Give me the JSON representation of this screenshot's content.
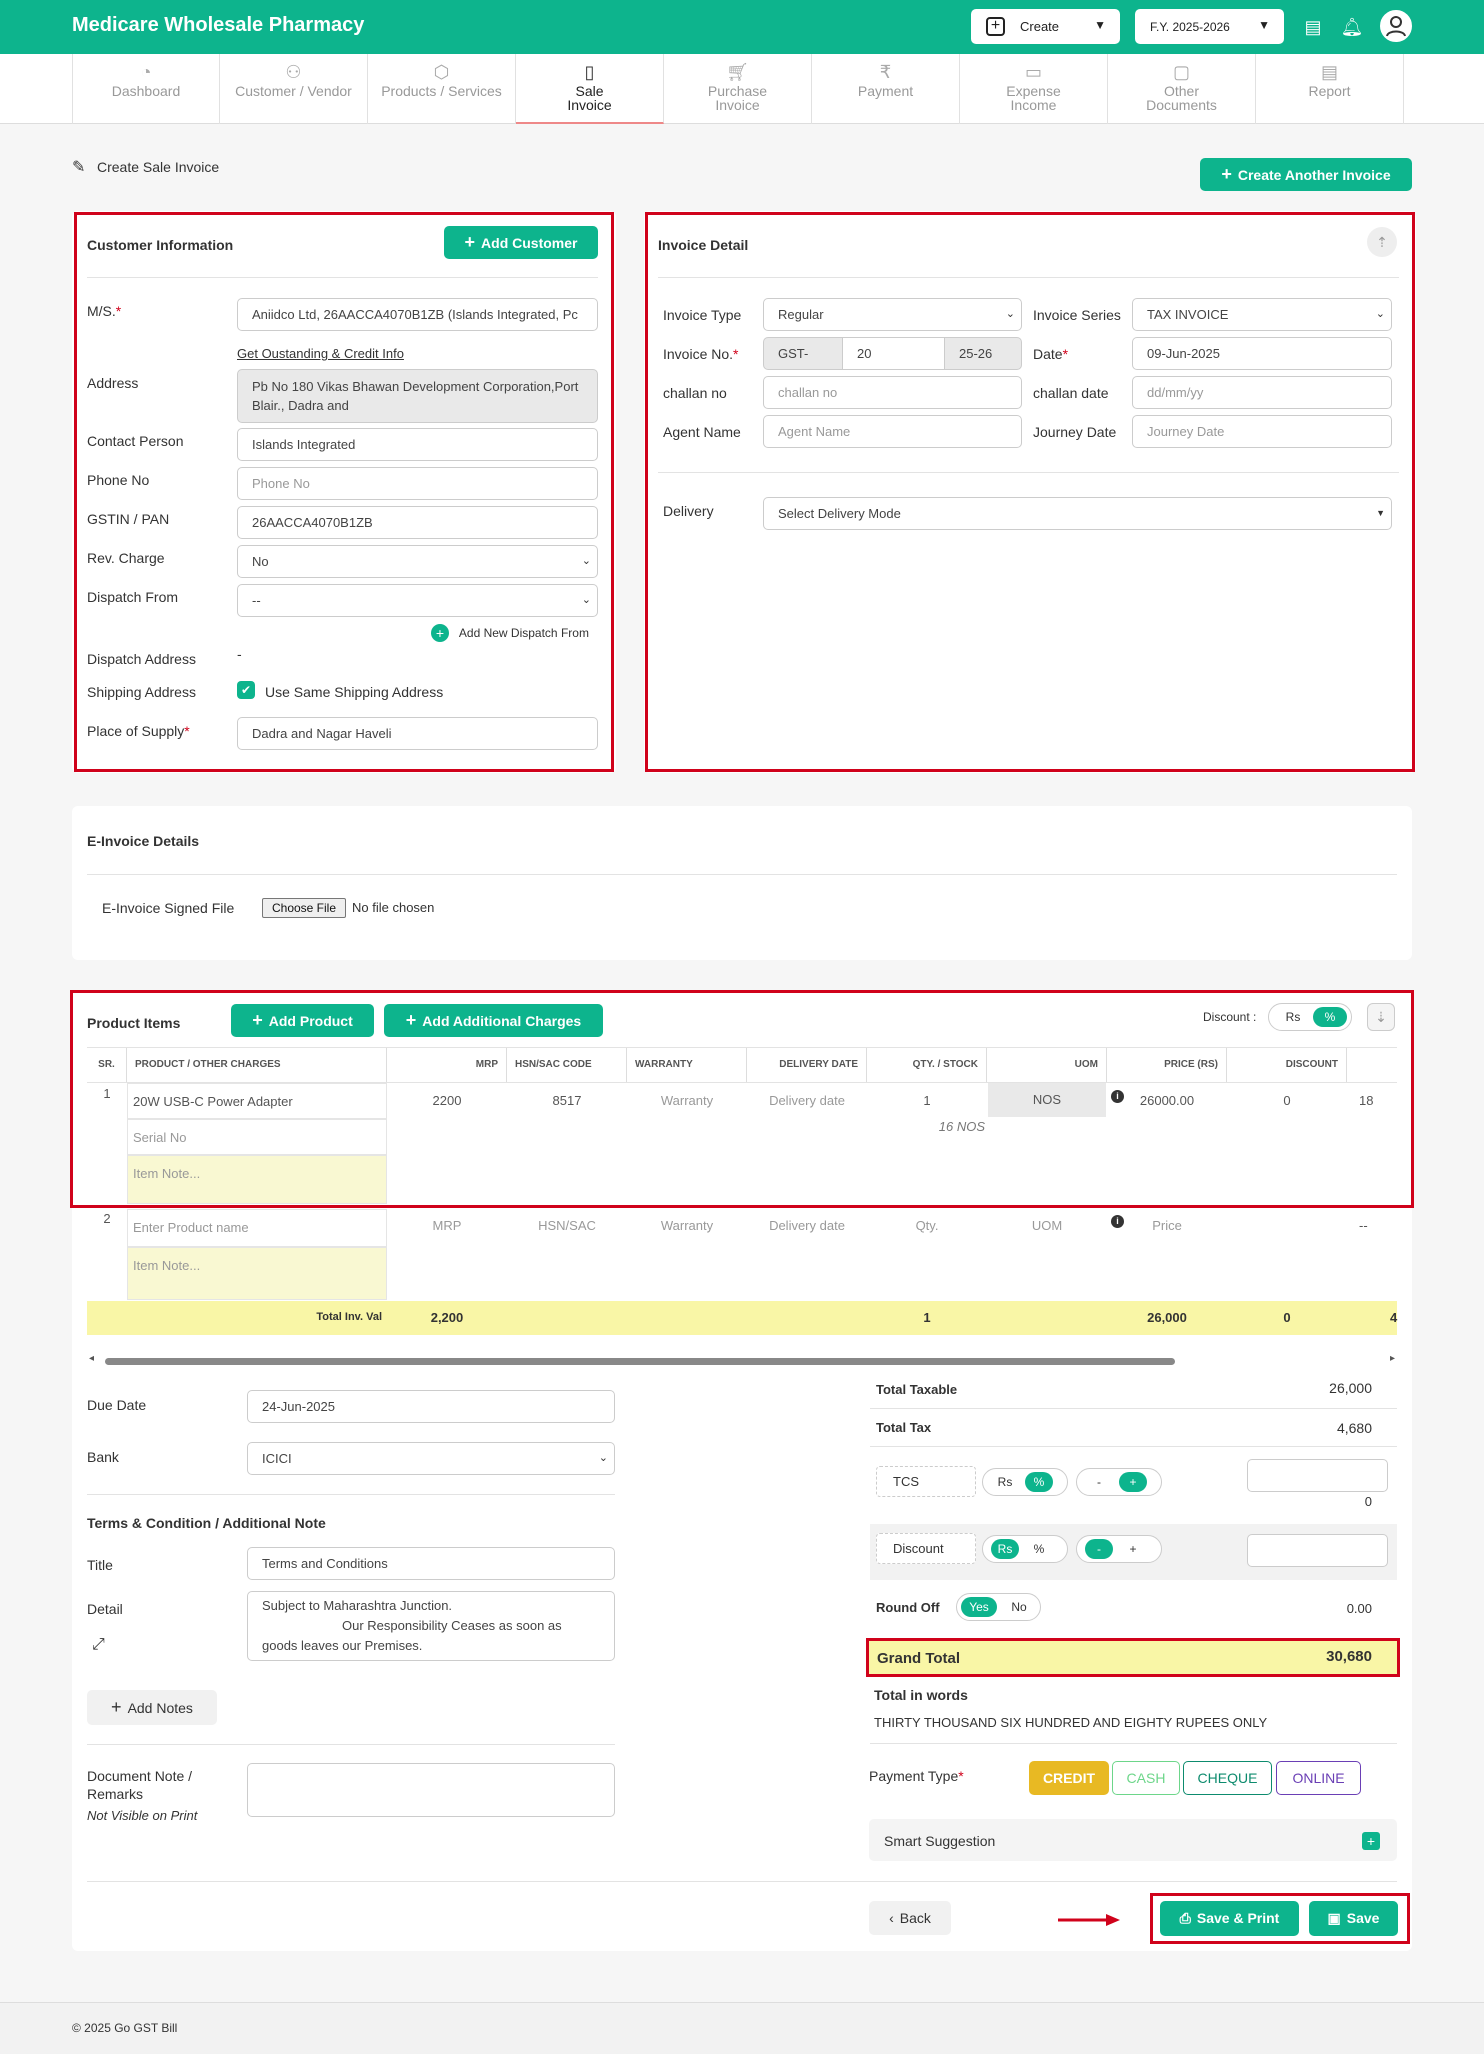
{
  "app": {
    "title": "Medicare Wholesale Pharmacy",
    "create_label": "Create",
    "fy_label": "F.Y. 2025-2026"
  },
  "nav": [
    {
      "label": "Dashboard"
    },
    {
      "label": "Customer / Vendor"
    },
    {
      "label": "Products / Services"
    },
    {
      "label": "Sale Invoice"
    },
    {
      "label": "Purchase Invoice"
    },
    {
      "label": "Payment"
    },
    {
      "label": "Expense Income"
    },
    {
      "label": "Other Documents"
    },
    {
      "label": "Report"
    }
  ],
  "page": {
    "title": "Create Sale Invoice",
    "create_another": "Create Another Invoice"
  },
  "customer": {
    "heading": "Customer Information",
    "add_customer": "Add Customer",
    "ms_label": "M/S.",
    "ms_value": "Aniidco Ltd, 26AACCA4070B1ZB (Islands Integrated, Pc",
    "outstanding_link": "Get Oustanding & Credit Info",
    "address_label": "Address",
    "address_value": "Pb No 180 Vikas Bhawan Development Corporation,Port Blair., Dadra and",
    "contact_label": "Contact Person",
    "contact_value": "Islands Integrated",
    "phone_label": "Phone No",
    "phone_placeholder": "Phone No",
    "gstin_label": "GSTIN / PAN",
    "gstin_value": "26AACCA4070B1ZB",
    "revcharge_label": "Rev. Charge",
    "revcharge_value": "No",
    "dispatch_label": "Dispatch From",
    "dispatch_value": "--",
    "add_dispatch": "Add New Dispatch From",
    "dispatch_addr_label": "Dispatch Address",
    "dispatch_addr_value": "-",
    "shipping_label": "Shipping Address",
    "shipping_check": "Use Same Shipping Address",
    "supply_label": "Place of Supply",
    "supply_value": "Dadra and Nagar Haveli"
  },
  "invoice": {
    "heading": "Invoice Detail",
    "type_label": "Invoice Type",
    "type_value": "Regular",
    "series_label": "Invoice Series",
    "series_value": "TAX INVOICE",
    "no_label": "Invoice No.",
    "no_prefix": "GST-",
    "no_value": "20",
    "no_suffix": "25-26",
    "date_label": "Date",
    "date_value": "09-Jun-2025",
    "challan_label": "challan no",
    "challan_placeholder": "challan no",
    "challan_date_label": "challan date",
    "challan_date_placeholder": "dd/mm/yy",
    "agent_label": "Agent Name",
    "agent_placeholder": "Agent Name",
    "journey_label": "Journey Date",
    "journey_placeholder": "Journey Date",
    "delivery_label": "Delivery",
    "delivery_value": "Select Delivery Mode"
  },
  "einvoice": {
    "heading": "E-Invoice Details",
    "file_label": "E-Invoice Signed File",
    "choose": "Choose File",
    "no_file": "No file chosen"
  },
  "products": {
    "heading": "Product Items",
    "add_product": "Add Product",
    "add_charges": "Add Additional Charges",
    "discount_label": "Discount :",
    "disc_rs": "Rs",
    "disc_pct": "%",
    "columns": [
      "SR.",
      "PRODUCT / OTHER CHARGES",
      "MRP",
      "HSN/SAC CODE",
      "WARRANTY",
      "DELIVERY DATE",
      "QTY. / STOCK",
      "UOM",
      "PRICE (RS)",
      "DISCOUNT"
    ],
    "row1": {
      "sr": "1",
      "name": "20W USB-C Power Adapter",
      "serial": "Serial No",
      "note": "Item Note...",
      "mrp": "2200",
      "hsn": "8517",
      "warranty": "Warranty",
      "delivery": "Delivery date",
      "qty": "1",
      "stock": "16 NOS",
      "uom": "NOS",
      "price": "26000.00",
      "discount": "0",
      "tax": "18"
    },
    "row2": {
      "sr": "2",
      "name": "Enter Product name",
      "note": "Item Note...",
      "mrp": "MRP",
      "hsn": "HSN/SAC",
      "warranty": "Warranty",
      "delivery": "Delivery date",
      "qty": "Qty.",
      "uom": "UOM",
      "price": "Price",
      "tax": "--"
    },
    "total": {
      "label": "Total Inv. Val",
      "mrp": "2,200",
      "qty": "1",
      "price": "26,000",
      "discount": "0",
      "tax": "4"
    }
  },
  "bottom": {
    "due_label": "Due Date",
    "due_value": "24-Jun-2025",
    "bank_label": "Bank",
    "bank_value": "ICICI",
    "terms_heading": "Terms & Condition / Additional Note",
    "title_label": "Title",
    "title_value": "Terms and Conditions",
    "detail_label": "Detail",
    "detail_line1": "Subject to Maharashtra Junction.",
    "detail_line2": "Our Responsibility Ceases as soon as",
    "detail_line3": "goods leaves our Premises.",
    "add_notes": "Add Notes",
    "docnote_label1": "Document Note /",
    "docnote_label2": "Remarks",
    "docnote_hint": "Not Visible on Print"
  },
  "totals": {
    "taxable_label": "Total Taxable",
    "taxable": "26,000",
    "tax_label": "Total Tax",
    "tax": "4,680",
    "tcs_label": "TCS",
    "tcs_value": "0",
    "discount_label": "Discount",
    "roundoff_label": "Round Off",
    "roundoff_yes": "Yes",
    "roundoff_no": "No",
    "roundoff": "0.00",
    "grand_label": "Grand Total",
    "grand": "30,680",
    "words_label": "Total in words",
    "words": "THIRTY THOUSAND SIX HUNDRED AND EIGHTY RUPEES ONLY",
    "rs": "Rs",
    "pct": "%",
    "minus": "-",
    "plus": "+"
  },
  "payment": {
    "label": "Payment Type",
    "options": [
      "CREDIT",
      "CASH",
      "CHEQUE",
      "ONLINE"
    ],
    "colors": [
      "#e8b923",
      "#6dd68a",
      "#0d8b6e",
      "#6a3fb5"
    ]
  },
  "smart": {
    "label": "Smart Suggestion"
  },
  "actions": {
    "back": "Back",
    "save_print": "Save & Print",
    "save": "Save"
  },
  "footer": {
    "text": "© 2025 Go GST Bill"
  }
}
